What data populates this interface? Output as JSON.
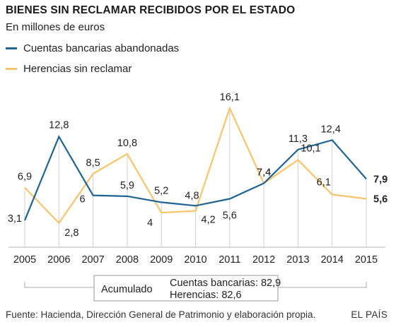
{
  "header": {
    "title": "BIENES SIN RECLAMAR RECIBIDOS POR EL ESTADO",
    "subtitle": "En millones de euros"
  },
  "footer": {
    "source": "Fuente: Hacienda, Dirección General de Patrimonio y elaboración propia.",
    "brand": "EL PAÍS"
  },
  "summary": {
    "label": "Acumulado",
    "line1": "Cuentas bancarias: 82,9",
    "line2": "Herencias: 82,6"
  },
  "colors": {
    "blue": "#1f6391",
    "yellow": "#f7c46c"
  },
  "chart_data": {
    "type": "line",
    "title": "BIENES SIN RECLAMAR RECIBIDOS POR EL ESTADO",
    "subtitle": "En millones de euros",
    "categories": [
      "2005",
      "2006",
      "2007",
      "2008",
      "2009",
      "2010",
      "2011",
      "2012",
      "2013",
      "2014",
      "2015"
    ],
    "series": [
      {
        "name": "Cuentas bancarias abandonadas",
        "color": "#1f6391",
        "values": [
          3.1,
          12.8,
          6,
          5.9,
          5.2,
          4.8,
          5.6,
          7.4,
          11.3,
          12.4,
          7.9
        ],
        "labels": [
          "3,1",
          "12,8",
          "6",
          "5,9",
          "5,2",
          "4,8",
          "5,6",
          "7,4",
          "11,3",
          "12,4",
          "7,9"
        ]
      },
      {
        "name": "Herencias sin reclamar",
        "color": "#f7c46c",
        "values": [
          6.9,
          2.8,
          8.5,
          10.8,
          4,
          4.2,
          16.1,
          7.4,
          10.1,
          6.1,
          5.6
        ],
        "labels": [
          "6,9",
          "2,8",
          "8,5",
          "10,8",
          "4",
          "4,2",
          "16,1",
          "7,4",
          "10,1",
          "6,1",
          "5,6"
        ]
      }
    ],
    "ylim": [
      0,
      17
    ],
    "grid": "vertical",
    "legend": "top-left"
  }
}
